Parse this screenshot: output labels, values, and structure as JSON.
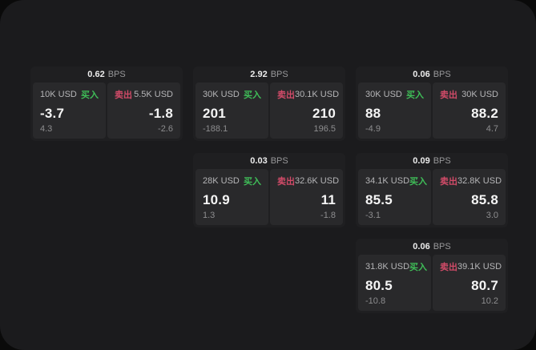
{
  "labels": {
    "buy": "买入",
    "sell": "卖出",
    "bps_unit": "BPS"
  },
  "colors": {
    "buy_green": "#3fbe58",
    "sell_red": "#d14b68",
    "screen_background": "#1b1b1d",
    "card_background": "#1f1f21",
    "panel_background": "#29292b"
  },
  "cards": [
    {
      "bps": "0.62",
      "buy": {
        "amount": "10K USD",
        "value": "-3.7",
        "secondary": "4.3"
      },
      "sell": {
        "amount": "5.5K USD",
        "value": "-1.8",
        "secondary": "-2.6"
      }
    },
    {
      "bps": "2.92",
      "buy": {
        "amount": "30K USD",
        "value": "201",
        "secondary": "-188.1"
      },
      "sell": {
        "amount": "30.1K USD",
        "value": "210",
        "secondary": "196.5"
      }
    },
    {
      "bps": "0.06",
      "buy": {
        "amount": "30K USD",
        "value": "88",
        "secondary": "-4.9"
      },
      "sell": {
        "amount": "30K USD",
        "value": "88.2",
        "secondary": "4.7"
      }
    },
    {
      "bps": "0.03",
      "buy": {
        "amount": "28K USD",
        "value": "10.9",
        "secondary": "1.3"
      },
      "sell": {
        "amount": "32.6K USD",
        "value": "11",
        "secondary": "-1.8"
      }
    },
    {
      "bps": "0.09",
      "buy": {
        "amount": "34.1K USD",
        "value": "85.5",
        "secondary": "-3.1"
      },
      "sell": {
        "amount": "32.8K USD",
        "value": "85.8",
        "secondary": "3.0"
      }
    },
    {
      "bps": "0.06",
      "buy": {
        "amount": "31.8K USD",
        "value": "80.5",
        "secondary": "-10.8"
      },
      "sell": {
        "amount": "39.1K USD",
        "value": "80.7",
        "secondary": "10.2"
      }
    }
  ]
}
